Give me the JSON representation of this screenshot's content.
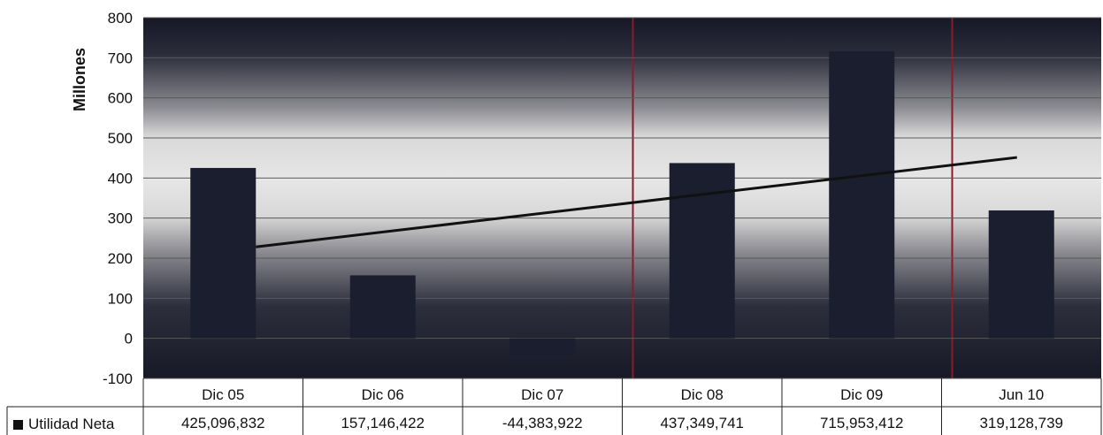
{
  "chart_data": {
    "type": "bar",
    "ylabel": "Millones",
    "ylim": [
      -100,
      800
    ],
    "yticks": [
      -100,
      0,
      100,
      200,
      300,
      400,
      500,
      600,
      700,
      800
    ],
    "grid": true,
    "categories": [
      "Dic 05",
      "Dic 06",
      "Dic 07",
      "Dic 08",
      "Dic 09",
      "Jun 10"
    ],
    "series": [
      {
        "name": "Utilidad Neta",
        "values": [
          425.1,
          157.1,
          -44.4,
          437.3,
          716.0,
          319.1
        ],
        "table_values": [
          "425,096,832",
          "157,146,422",
          "-44,383,922",
          "437,349,741",
          "715,953,412",
          "319,128,739"
        ]
      }
    ],
    "trendline": {
      "type": "linear",
      "from_category": "Dic 05",
      "to_category": "Jun 10"
    },
    "colors": {
      "bar": "#1b1e2e",
      "trend": "#111111",
      "background_dark": "#1a1d2c",
      "background_light": "#dcdcdc",
      "accent_line": "#8b1a2a"
    }
  }
}
